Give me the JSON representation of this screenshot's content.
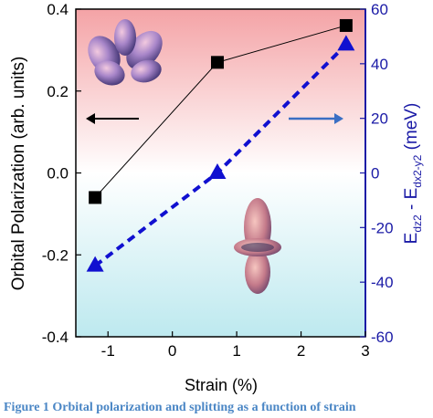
{
  "chart_data": {
    "type": "line",
    "xlabel": "Strain (%)",
    "ylabel_left": "Orbital Polarization (arb. units)",
    "ylabel_right": {
      "main": "E",
      "sub1": "dz2",
      "mid": " - E",
      "sub2": "dx2-y2",
      "unit": " (meV)"
    },
    "xlim": [
      -1.5,
      3
    ],
    "ylim_left": [
      -0.4,
      0.4
    ],
    "ylim_right": [
      -60,
      60
    ],
    "x_ticks": [
      "-1",
      "0",
      "1",
      "2",
      "3"
    ],
    "y_ticks_left": [
      "-0.4",
      "-0.2",
      "0.0",
      "0.2",
      "0.4"
    ],
    "y_ticks_right": [
      "-60",
      "-40",
      "-20",
      "0",
      "20",
      "40",
      "60"
    ],
    "series": [
      {
        "axis": "left",
        "marker": "square",
        "line": "solid",
        "color": "#000000",
        "x": [
          -1.2,
          0.7,
          2.7
        ],
        "y": [
          -0.06,
          0.27,
          0.36
        ]
      },
      {
        "axis": "right",
        "marker": "triangle",
        "line": "dashed",
        "color": "#1010d0",
        "x": [
          -1.2,
          0.7,
          2.7
        ],
        "y": [
          -34,
          0,
          47
        ]
      }
    ],
    "background_gradient": [
      "#f4a3a6",
      "#ffffff",
      "#bde9ef"
    ],
    "arrows": [
      {
        "direction": "left",
        "color": "#000000",
        "meaning": "left axis"
      },
      {
        "direction": "right",
        "color": "#3a6fc4",
        "meaning": "right axis"
      }
    ],
    "grid": false
  },
  "caption": "Figure 1 Orbital polarization and splitting as a function of strain"
}
